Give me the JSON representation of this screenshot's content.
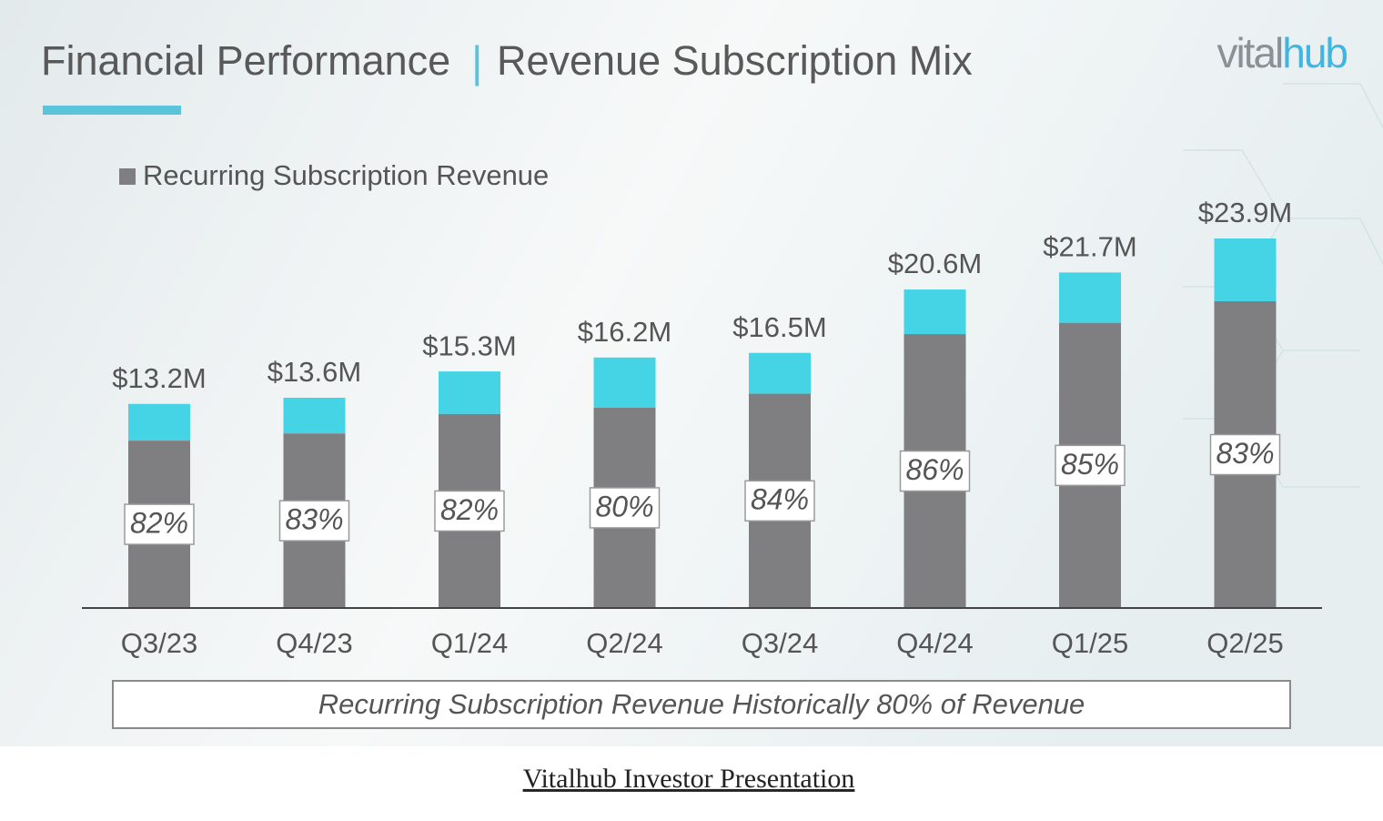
{
  "header": {
    "title": "Financial Performance",
    "separator": "|",
    "subtitle": "Revenue Subscription Mix",
    "logo": [
      "vital",
      "hub"
    ]
  },
  "chart_data": {
    "type": "bar",
    "categories": [
      "Q3/23",
      "Q4/23",
      "Q1/24",
      "Q2/24",
      "Q3/24",
      "Q4/24",
      "Q1/25",
      "Q2/25"
    ],
    "values": [
      13.2,
      13.6,
      15.3,
      16.2,
      16.5,
      20.6,
      21.7,
      23.9
    ],
    "value_labels": [
      "$13.2M",
      "$13.6M",
      "$15.3M",
      "$16.2M",
      "$16.5M",
      "$20.6M",
      "$21.7M",
      "$23.9M"
    ],
    "remainder_color": "#45d3e6",
    "series": [
      {
        "name": "Recurring Subscription Revenue",
        "color": "#7f7f81",
        "values": [
          82,
          83,
          82,
          80,
          84,
          86,
          85,
          83
        ],
        "value_labels": [
          "82%",
          "83%",
          "82%",
          "80%",
          "84%",
          "86%",
          "85%",
          "83%"
        ]
      }
    ],
    "annotation": "Recurring Subscription Revenue Historically 80% of Revenue"
  },
  "caption": "Vitalhub Investor Presentation"
}
